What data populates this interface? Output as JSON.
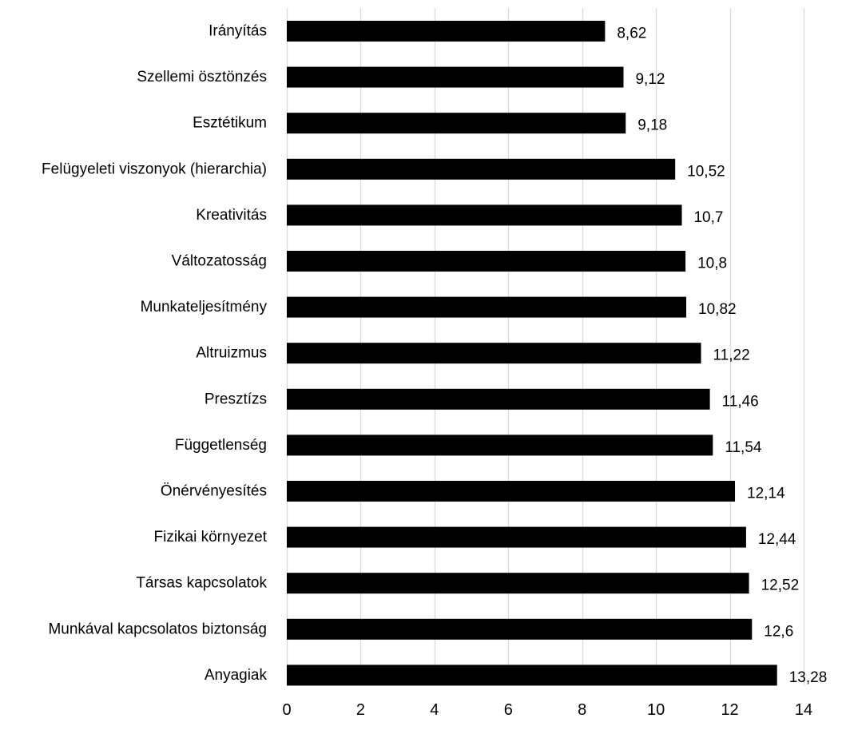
{
  "chart_data": {
    "type": "bar",
    "orientation": "horizontal",
    "categories": [
      "Irányítás",
      "Szellemi ösztönzés",
      "Esztétikum",
      "Felügyeleti viszonyok (hierarchia)",
      "Kreativitás",
      "Változatosság",
      "Munkateljesítmény",
      "Altruizmus",
      "Presztízs",
      "Függetlenség",
      "Önérvényesítés",
      "Fizikai környezet",
      "Társas kapcsolatok",
      "Munkával kapcsolatos biztonság",
      "Anyagiak"
    ],
    "values": [
      8.62,
      9.12,
      9.18,
      10.52,
      10.7,
      10.8,
      10.82,
      11.22,
      11.46,
      11.54,
      12.14,
      12.44,
      12.52,
      12.6,
      13.28
    ],
    "value_labels": [
      "8,62",
      "9,12",
      "9,18",
      "10,52",
      "10,7",
      "10,8",
      "10,82",
      "11,22",
      "11,46",
      "11,54",
      "12,14",
      "12,44",
      "12,52",
      "12,6",
      "13,28"
    ],
    "xlim": [
      0,
      14
    ],
    "xticks": [
      0,
      2,
      4,
      6,
      8,
      10,
      12,
      14
    ],
    "xtick_labels": [
      "0",
      "2",
      "4",
      "6",
      "8",
      "10",
      "12",
      "14"
    ],
    "grid": "vertical",
    "legend": "none",
    "bar_color": "#000000",
    "grid_color": "#d9d9d9"
  }
}
